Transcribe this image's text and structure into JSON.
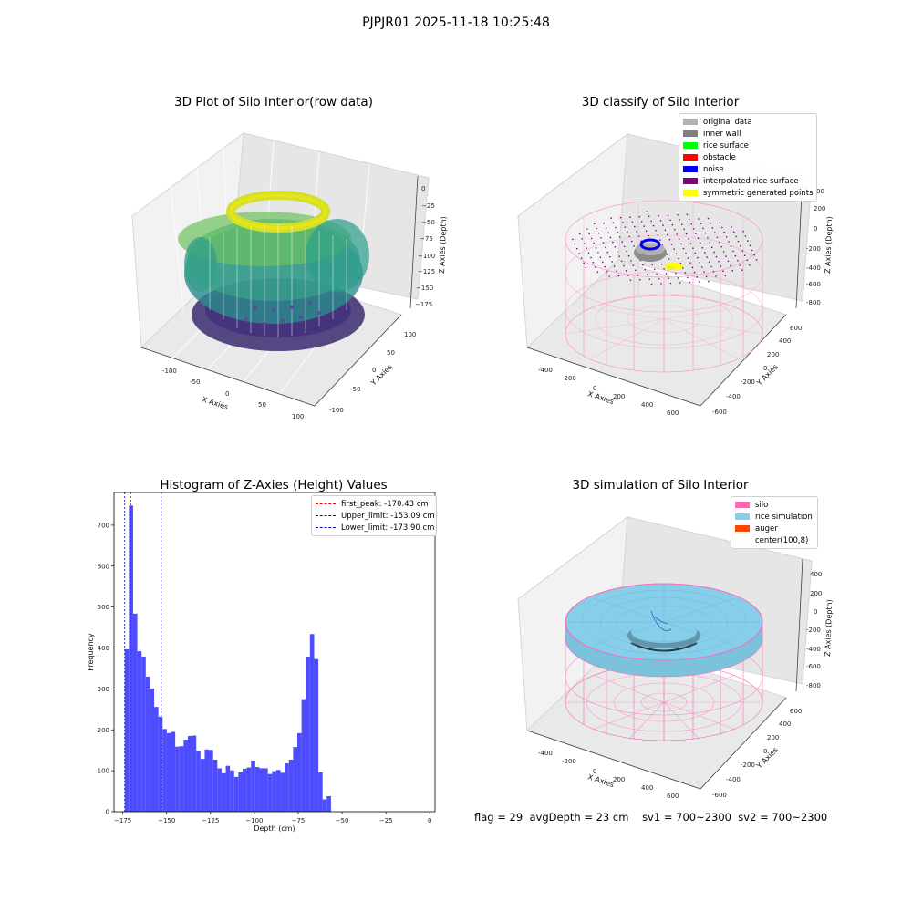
{
  "suptitle": "PJPJR01 2025-11-18 10:25:48",
  "panels": {
    "raw": {
      "title": "3D Plot of Silo Interior(row data)",
      "xlabel": "X Axies",
      "ylabel": "Y Axies",
      "zlabel": "Z Axies (Depth)",
      "xticks": [
        "-100",
        "-50",
        "0",
        "50",
        "100"
      ],
      "yticks": [
        "-100",
        "-50",
        "0",
        "50",
        "100"
      ],
      "zticks": [
        "0",
        "−25",
        "−50",
        "−75",
        "−100",
        "−125",
        "−150",
        "−175"
      ]
    },
    "classify": {
      "title": "3D classify of Silo Interior",
      "xlabel": "X Axies",
      "ylabel": "Y Axies",
      "zlabel": "Z Axies (Depth)",
      "xticks": [
        "-400",
        "-200",
        "0",
        "200",
        "400",
        "600"
      ],
      "yticks": [
        "-600",
        "-400",
        "-200",
        "0",
        "200",
        "400",
        "600"
      ],
      "zticks": [
        "200",
        "0",
        "-200",
        "-400",
        "-600",
        "-800"
      ],
      "ztick_partial": "00",
      "legend": [
        {
          "label": "original data",
          "color": "#b3b3b3"
        },
        {
          "label": "inner wall",
          "color": "#808080"
        },
        {
          "label": "rice surface",
          "color": "#00ff00"
        },
        {
          "label": "obstacle",
          "color": "#ff0000"
        },
        {
          "label": "noise",
          "color": "#0000ff"
        },
        {
          "label": "interpolated rice surface",
          "color": "#800080"
        },
        {
          "label": "symmetric generated points",
          "color": "#ffff00"
        }
      ]
    },
    "simulation": {
      "title": "3D simulation of Silo Interior",
      "xlabel": "X Axies",
      "ylabel": "Y Axies",
      "zlabel": "Z Axies (Depth)",
      "xticks": [
        "-400",
        "-200",
        "0",
        "200",
        "400",
        "600"
      ],
      "yticks": [
        "-600",
        "-400",
        "-200",
        "0",
        "200",
        "400",
        "600"
      ],
      "zticks": [
        "400",
        "200",
        "0",
        "-200",
        "-400",
        "-600",
        "-800"
      ],
      "legend": [
        {
          "label": "silo",
          "color": "#ff69b4"
        },
        {
          "label": "rice simulation",
          "color": "#87ceeb"
        },
        {
          "label": "auger",
          "color": "#ff4500"
        },
        {
          "label": "center(100,8)",
          "color": ""
        }
      ]
    }
  },
  "chart_data": {
    "type": "bar",
    "title": "Histogram of Z-Axies (Height) Values",
    "xlabel": "Depth (cm)",
    "ylabel": "Frequency",
    "xlim": [
      -180,
      3
    ],
    "ylim": [
      0,
      780
    ],
    "xticks": [
      -175,
      -150,
      -125,
      -100,
      -75,
      -50,
      -25,
      0
    ],
    "yticks": [
      0,
      100,
      200,
      300,
      400,
      500,
      600,
      700
    ],
    "bin_start": -173.9,
    "bin_width": 2.4,
    "bar_color": "#4d4dff",
    "values": [
      397,
      748,
      484,
      392,
      379,
      330,
      301,
      256,
      232,
      202,
      192,
      195,
      159,
      160,
      176,
      185,
      186,
      149,
      129,
      152,
      151,
      127,
      106,
      94,
      112,
      101,
      85,
      96,
      105,
      108,
      125,
      109,
      106,
      106,
      92,
      99,
      102,
      95,
      118,
      127,
      158,
      192,
      275,
      379,
      434,
      373,
      96,
      30,
      38
    ],
    "vlines": [
      {
        "label": "first_peak: -170.43 cm",
        "x": -170.43,
        "color": "#ff0000"
      },
      {
        "label": "Upper_limit: -153.09 cm",
        "x": -153.09,
        "color": "#0000aa"
      },
      {
        "label": "Lower_limit: -173.90 cm",
        "x": -173.9,
        "color": "#0000aa"
      }
    ]
  },
  "footer": {
    "flag": "flag = 29",
    "avg": "avgDepth = 23 cm",
    "sv1": "sv1 = 700~2300",
    "sv2": "sv2 = 700~2300"
  }
}
